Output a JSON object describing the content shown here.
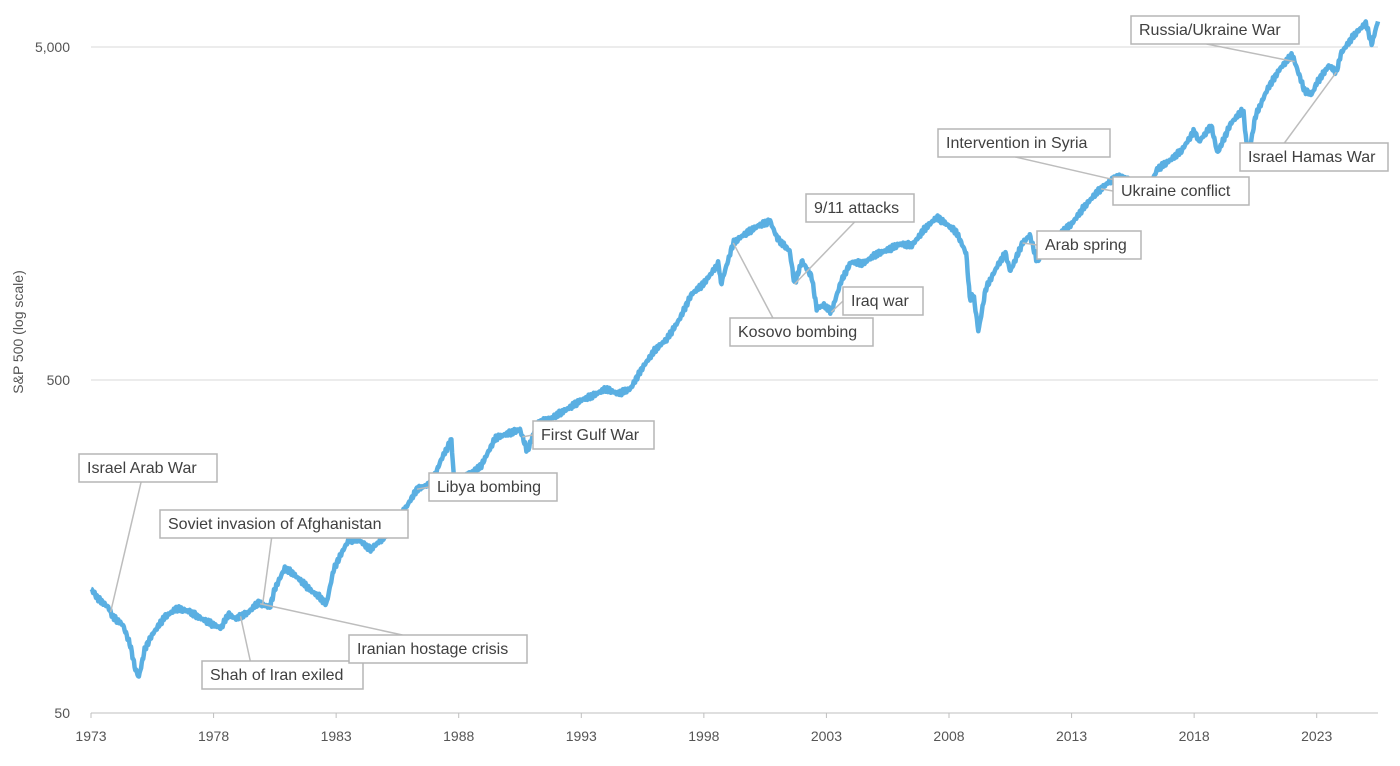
{
  "chart_data": {
    "type": "line",
    "title": "",
    "xlabel": "",
    "ylabel": "S&P 500 (log  scale)",
    "yscale": "log",
    "ylim": [
      50,
      7000
    ],
    "xlim": [
      1973,
      2025.5
    ],
    "grid": true,
    "colors": {
      "series": "#5aafe2",
      "grid": "#d9d9d9",
      "annotation_border": "#b5b5b5",
      "text": "#404040"
    },
    "x_ticks": [
      1973,
      1978,
      1983,
      1988,
      1993,
      1998,
      2003,
      2008,
      2013,
      2018,
      2023
    ],
    "x_tick_labels": [
      "1973",
      "1978",
      "1983",
      "1988",
      "1993",
      "1998",
      "2003",
      "2008",
      "2013",
      "2018",
      "2023"
    ],
    "y_ticks": [
      50,
      500,
      5000
    ],
    "y_tick_labels": [
      "50",
      "500",
      "5,000"
    ],
    "series": [
      {
        "name": "S&P 500",
        "points": [
          [
            1973.0,
            118
          ],
          [
            1973.3,
            110
          ],
          [
            1973.7,
            104
          ],
          [
            1973.9,
            97
          ],
          [
            1974.3,
            92
          ],
          [
            1974.6,
            80
          ],
          [
            1974.8,
            68
          ],
          [
            1974.95,
            64
          ],
          [
            1975.2,
            78
          ],
          [
            1975.5,
            86
          ],
          [
            1976.0,
            97
          ],
          [
            1976.5,
            103
          ],
          [
            1977.0,
            101
          ],
          [
            1977.5,
            96
          ],
          [
            1978.0,
            92
          ],
          [
            1978.3,
            90
          ],
          [
            1978.6,
            99
          ],
          [
            1978.9,
            96
          ],
          [
            1979.4,
            100
          ],
          [
            1979.8,
            107
          ],
          [
            1980.3,
            104
          ],
          [
            1980.5,
            118
          ],
          [
            1980.9,
            136
          ],
          [
            1981.2,
            132
          ],
          [
            1981.6,
            124
          ],
          [
            1982.0,
            116
          ],
          [
            1982.3,
            112
          ],
          [
            1982.6,
            106
          ],
          [
            1982.9,
            135
          ],
          [
            1983.2,
            150
          ],
          [
            1983.5,
            165
          ],
          [
            1983.9,
            166
          ],
          [
            1984.4,
            155
          ],
          [
            1984.9,
            167
          ],
          [
            1985.4,
            186
          ],
          [
            1985.9,
            210
          ],
          [
            1986.3,
            235
          ],
          [
            1986.9,
            245
          ],
          [
            1987.3,
            290
          ],
          [
            1987.7,
            330
          ],
          [
            1987.85,
            225
          ],
          [
            1988.3,
            258
          ],
          [
            1988.9,
            275
          ],
          [
            1989.5,
            335
          ],
          [
            1990.0,
            345
          ],
          [
            1990.5,
            355
          ],
          [
            1990.8,
            305
          ],
          [
            1991.2,
            370
          ],
          [
            1991.8,
            385
          ],
          [
            1992.5,
            412
          ],
          [
            1993.0,
            435
          ],
          [
            1993.5,
            450
          ],
          [
            1994.0,
            470
          ],
          [
            1994.5,
            455
          ],
          [
            1995.0,
            470
          ],
          [
            1995.5,
            545
          ],
          [
            1996.0,
            615
          ],
          [
            1996.5,
            665
          ],
          [
            1997.0,
            760
          ],
          [
            1997.5,
            905
          ],
          [
            1998.0,
            975
          ],
          [
            1998.6,
            1120
          ],
          [
            1998.7,
            970
          ],
          [
            1999.2,
            1290
          ],
          [
            1999.6,
            1360
          ],
          [
            2000.2,
            1450
          ],
          [
            2000.7,
            1500
          ],
          [
            2001.0,
            1330
          ],
          [
            2001.5,
            1220
          ],
          [
            2001.7,
            970
          ],
          [
            2002.0,
            1140
          ],
          [
            2002.4,
            1020
          ],
          [
            2002.6,
            820
          ],
          [
            2002.9,
            840
          ],
          [
            2003.2,
            800
          ],
          [
            2003.6,
            990
          ],
          [
            2004.0,
            1130
          ],
          [
            2004.5,
            1120
          ],
          [
            2005.0,
            1190
          ],
          [
            2005.5,
            1230
          ],
          [
            2006.0,
            1280
          ],
          [
            2006.5,
            1270
          ],
          [
            2007.0,
            1420
          ],
          [
            2007.5,
            1540
          ],
          [
            2007.9,
            1470
          ],
          [
            2008.3,
            1390
          ],
          [
            2008.7,
            1200
          ],
          [
            2008.85,
            880
          ],
          [
            2009.0,
            900
          ],
          [
            2009.2,
            700
          ],
          [
            2009.5,
            940
          ],
          [
            2010.0,
            1110
          ],
          [
            2010.3,
            1200
          ],
          [
            2010.5,
            1060
          ],
          [
            2011.0,
            1290
          ],
          [
            2011.3,
            1360
          ],
          [
            2011.6,
            1130
          ],
          [
            2012.0,
            1300
          ],
          [
            2012.5,
            1370
          ],
          [
            2013.0,
            1470
          ],
          [
            2013.5,
            1650
          ],
          [
            2014.0,
            1820
          ],
          [
            2014.5,
            1960
          ],
          [
            2015.0,
            2060
          ],
          [
            2015.6,
            1920
          ],
          [
            2016.1,
            1850
          ],
          [
            2016.5,
            2150
          ],
          [
            2017.0,
            2280
          ],
          [
            2017.5,
            2450
          ],
          [
            2018.0,
            2800
          ],
          [
            2018.2,
            2600
          ],
          [
            2018.7,
            2900
          ],
          [
            2018.95,
            2400
          ],
          [
            2019.5,
            2950
          ],
          [
            2020.0,
            3250
          ],
          [
            2020.2,
            2300
          ],
          [
            2020.5,
            3100
          ],
          [
            2021.0,
            3750
          ],
          [
            2021.5,
            4300
          ],
          [
            2022.0,
            4750
          ],
          [
            2022.5,
            3700
          ],
          [
            2022.8,
            3600
          ],
          [
            2023.0,
            3900
          ],
          [
            2023.5,
            4400
          ],
          [
            2023.8,
            4200
          ],
          [
            2024.0,
            4800
          ],
          [
            2024.5,
            5400
          ],
          [
            2025.0,
            5900
          ],
          [
            2025.25,
            5100
          ],
          [
            2025.5,
            6000
          ]
        ]
      }
    ],
    "annotations": [
      {
        "label": "Israel Arab War",
        "date": 1973.8
      },
      {
        "label": "Shah of Iran exiled",
        "date": 1979.1
      },
      {
        "label": "Soviet invasion  of Afghanistan",
        "date": 1980.0
      },
      {
        "label": "Iranian hostage crisis",
        "date": 1979.9
      },
      {
        "label": "Libya bombing",
        "date": 1986.3
      },
      {
        "label": "First Gulf War",
        "date": 1990.6
      },
      {
        "label": "Kosovo bombing",
        "date": 1999.2
      },
      {
        "label": "9/11 attacks",
        "date": 2001.7
      },
      {
        "label": "Iraq war",
        "date": 2003.2
      },
      {
        "label": "Arab spring",
        "date": 2011.0
      },
      {
        "label": "Intervention in Syria",
        "date": 2014.7
      },
      {
        "label": "Ukraine conflict",
        "date": 2014.2
      },
      {
        "label": "Russia/Ukraine War",
        "date": 2022.1
      },
      {
        "label": "Israel Hamas War",
        "date": 2023.8
      }
    ]
  }
}
